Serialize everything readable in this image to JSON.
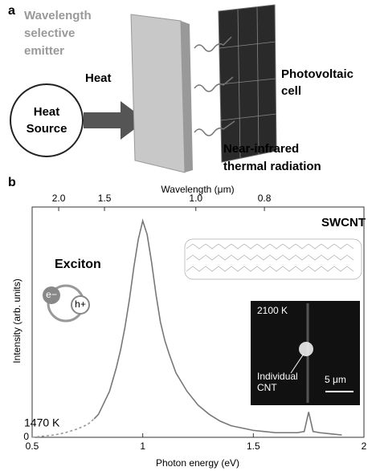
{
  "panel_a": {
    "label": "a",
    "emitter_label": [
      "Wavelength",
      "selective",
      "emitter"
    ],
    "source_label": [
      "Heat",
      "Source"
    ],
    "arrow_label": "Heat",
    "cell_label": [
      "Photovoltaic",
      "cell"
    ],
    "radiation_label": [
      "Near-infrared",
      "thermal radiation"
    ]
  },
  "chart_data": {
    "type": "line",
    "panel_label": "b",
    "xlabel": "Photon energy (eV)",
    "ylabel": "Intensity (arb. units)",
    "x2label": "Wavelength (μm)",
    "xlim": [
      0.5,
      2.0
    ],
    "xticks": [
      0.5,
      1.0,
      1.5,
      2.0
    ],
    "x2ticks": [
      {
        "value": 0.62,
        "label": "2.0"
      },
      {
        "value": 0.827,
        "label": "1.5"
      },
      {
        "value": 1.24,
        "label": "1.0"
      },
      {
        "value": 1.55,
        "label": "0.8"
      }
    ],
    "ylim": [
      0,
      1
    ],
    "yticks": [
      0
    ],
    "series": [
      {
        "color": "#999999",
        "style": "dashed",
        "x": [
          0.5,
          0.55,
          0.6,
          0.65,
          0.7,
          0.75,
          0.78
        ],
        "values": [
          0.0,
          0.005,
          0.01,
          0.02,
          0.035,
          0.055,
          0.08
        ]
      },
      {
        "color": "#777777",
        "style": "solid",
        "x": [
          0.78,
          0.8,
          0.82,
          0.85,
          0.88,
          0.9,
          0.92,
          0.94,
          0.96,
          0.98,
          1.0,
          1.02,
          1.04,
          1.06,
          1.08,
          1.1,
          1.12,
          1.15,
          1.2,
          1.25,
          1.3,
          1.35,
          1.4,
          1.45,
          1.5,
          1.55,
          1.6,
          1.65,
          1.7,
          1.73,
          1.75,
          1.77,
          1.8,
          1.85,
          1.9
        ],
        "values": [
          0.08,
          0.1,
          0.14,
          0.2,
          0.3,
          0.38,
          0.48,
          0.6,
          0.74,
          0.86,
          0.94,
          0.88,
          0.76,
          0.62,
          0.5,
          0.42,
          0.36,
          0.28,
          0.2,
          0.14,
          0.1,
          0.07,
          0.05,
          0.04,
          0.03,
          0.025,
          0.02,
          0.02,
          0.02,
          0.025,
          0.11,
          0.025,
          0.02,
          0.015,
          0.01
        ]
      }
    ],
    "annotations": {
      "temperature": "1470 K",
      "exciton": "Exciton",
      "electron": "e−",
      "hole": "h+",
      "swcnt": "SWCNT",
      "inset_temperature": "2100 K",
      "inset_label": [
        "Individual",
        "CNT"
      ],
      "scale_bar": "5 μm"
    }
  }
}
